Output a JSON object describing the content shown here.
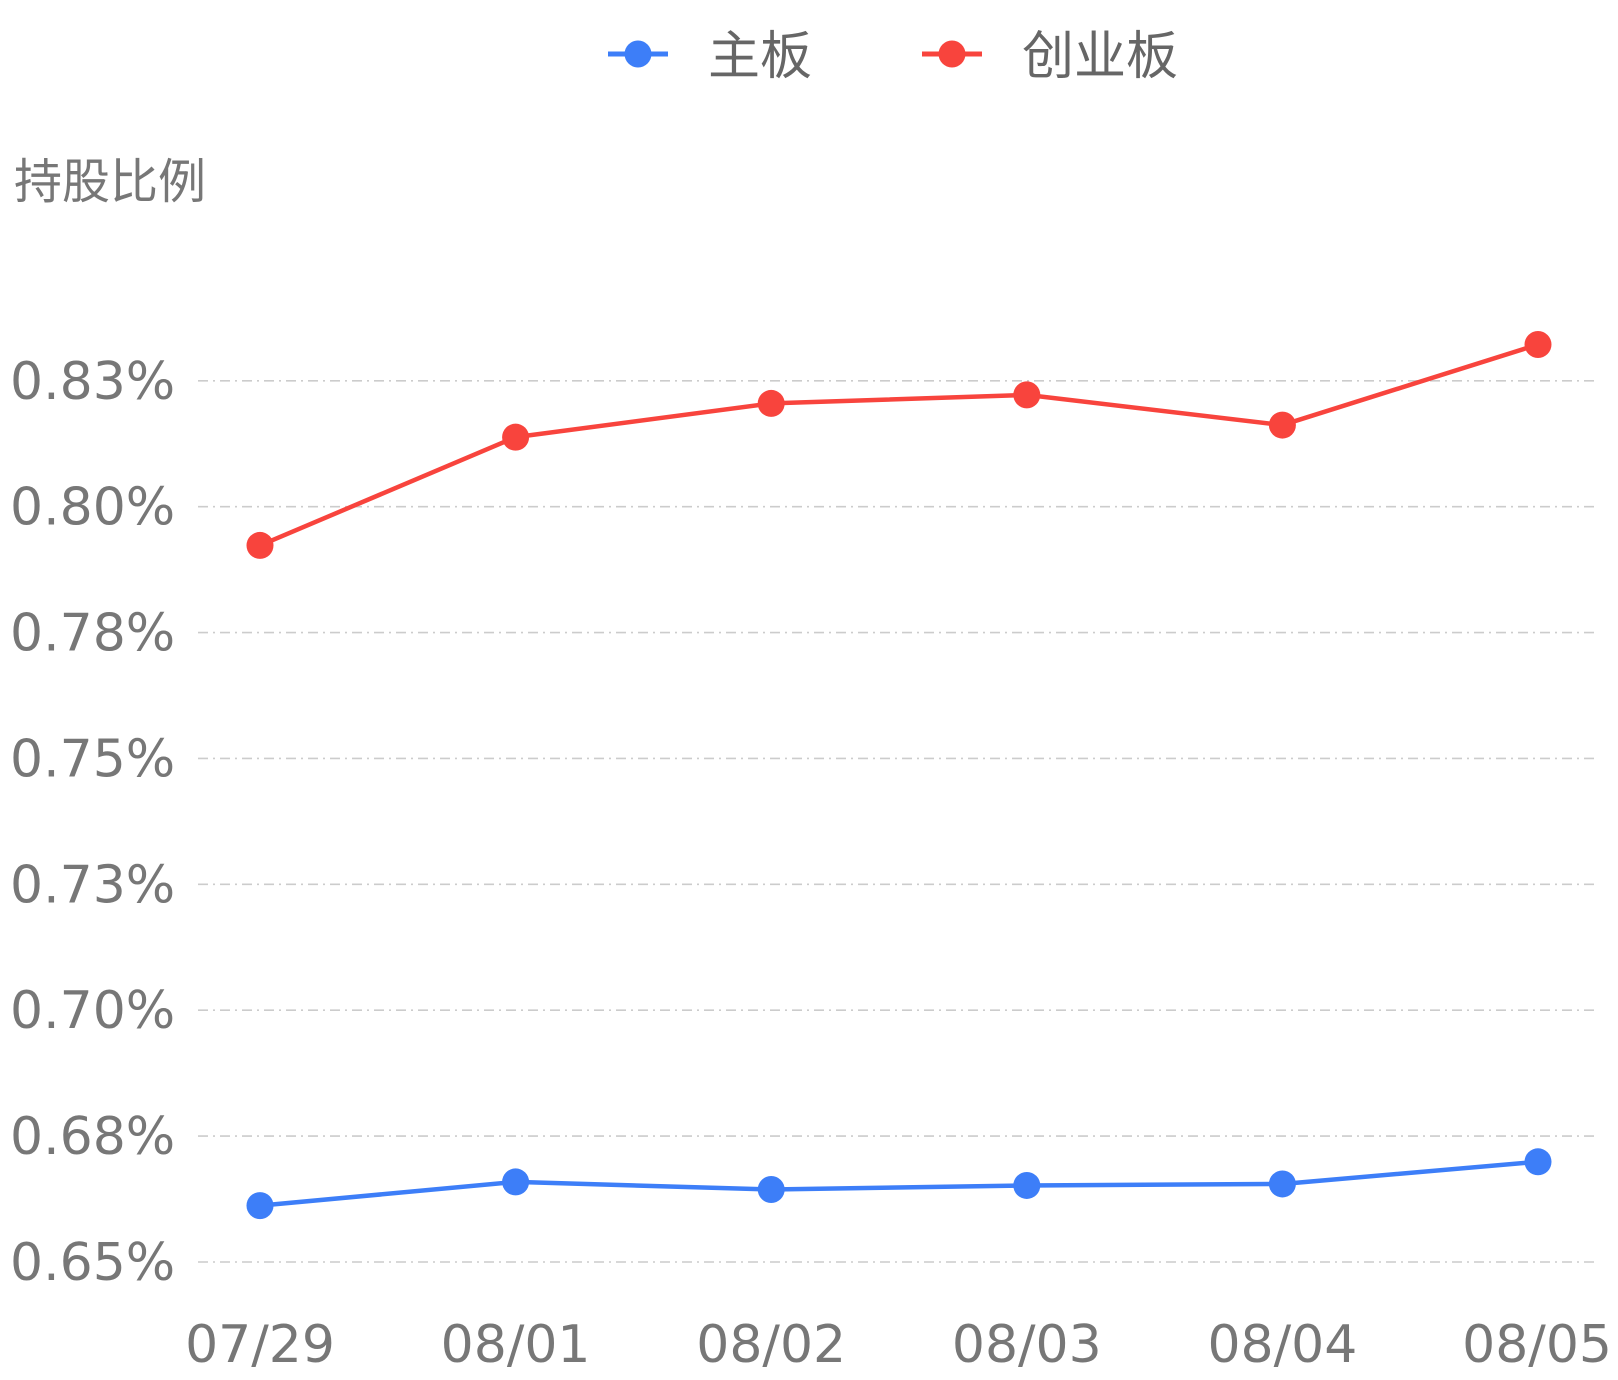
{
  "chart_data": {
    "type": "line",
    "title": "",
    "xlabel": "",
    "ylabel": "持股比例",
    "categories": [
      "07/29",
      "08/01",
      "08/02",
      "08/03",
      "08/04",
      "08/05"
    ],
    "series": [
      {
        "name": "主板",
        "color": "#3d7ef8",
        "values": [
          0.6612,
          0.6659,
          0.6644,
          0.6652,
          0.6655,
          0.6699
        ]
      },
      {
        "name": "创业板",
        "color": "#f8443d",
        "values": [
          0.7923,
          0.8138,
          0.8205,
          0.8222,
          0.8162,
          0.8322
        ]
      }
    ],
    "ylim": [
      0.65,
      0.8325
    ],
    "yticks": [
      {
        "value": 0.65,
        "label": "0.65%"
      },
      {
        "value": 0.675,
        "label": "0.68%"
      },
      {
        "value": 0.7,
        "label": "0.70%"
      },
      {
        "value": 0.725,
        "label": "0.73%"
      },
      {
        "value": 0.75,
        "label": "0.75%"
      },
      {
        "value": 0.775,
        "label": "0.78%"
      },
      {
        "value": 0.8,
        "label": "0.80%"
      },
      {
        "value": 0.825,
        "label": "0.83%"
      }
    ],
    "grid": true,
    "legend_position": "top-center"
  }
}
